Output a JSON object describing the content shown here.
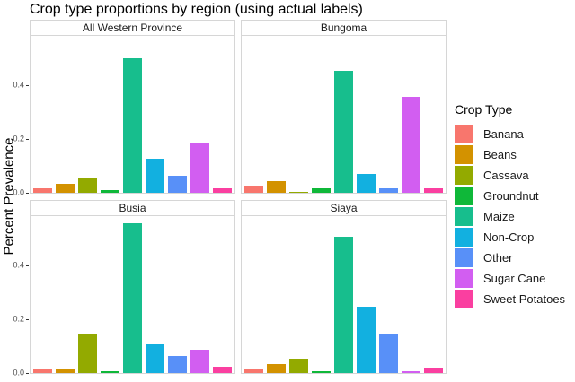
{
  "title": "Crop type proportions by region (using actual labels)",
  "y_axis": {
    "label": "Percent Prevalence",
    "tick_labels": [
      "0.0",
      "0.2",
      "0.4"
    ],
    "tick_values": [
      0.0,
      0.2,
      0.4
    ]
  },
  "legend": {
    "title": "Crop Type"
  },
  "chart_data": {
    "type": "bar",
    "title": "Crop type proportions by region (using actual labels)",
    "xlabel": "",
    "ylabel": "Percent Prevalence",
    "ylim": [
      0,
      0.58
    ],
    "yticks": [
      0.0,
      0.2,
      0.4
    ],
    "grid": false,
    "legend_position": "right",
    "legend_title": "Crop Type",
    "categories": [
      "Banana",
      "Beans",
      "Cassava",
      "Groundnut",
      "Maize",
      "Non-Crop",
      "Other",
      "Sugar Cane",
      "Sweet Potatoes"
    ],
    "colors": [
      "#F8766D",
      "#D39200",
      "#93AA00",
      "#0FB839",
      "#17BE8D",
      "#12B0E0",
      "#5890F8",
      "#D25EF1",
      "#FA3FA0"
    ],
    "facets": [
      {
        "name": "All Western Province",
        "values": [
          0.017,
          0.032,
          0.057,
          0.01,
          0.5,
          0.125,
          0.063,
          0.183,
          0.015
        ]
      },
      {
        "name": "Bungoma",
        "values": [
          0.025,
          0.043,
          0.002,
          0.018,
          0.453,
          0.07,
          0.016,
          0.357,
          0.017
        ]
      },
      {
        "name": "Busia",
        "values": [
          0.014,
          0.012,
          0.147,
          0.008,
          0.556,
          0.107,
          0.063,
          0.087,
          0.023
        ]
      },
      {
        "name": "Siaya",
        "values": [
          0.013,
          0.033,
          0.052,
          0.007,
          0.506,
          0.245,
          0.143,
          0.005,
          0.02
        ]
      }
    ]
  }
}
